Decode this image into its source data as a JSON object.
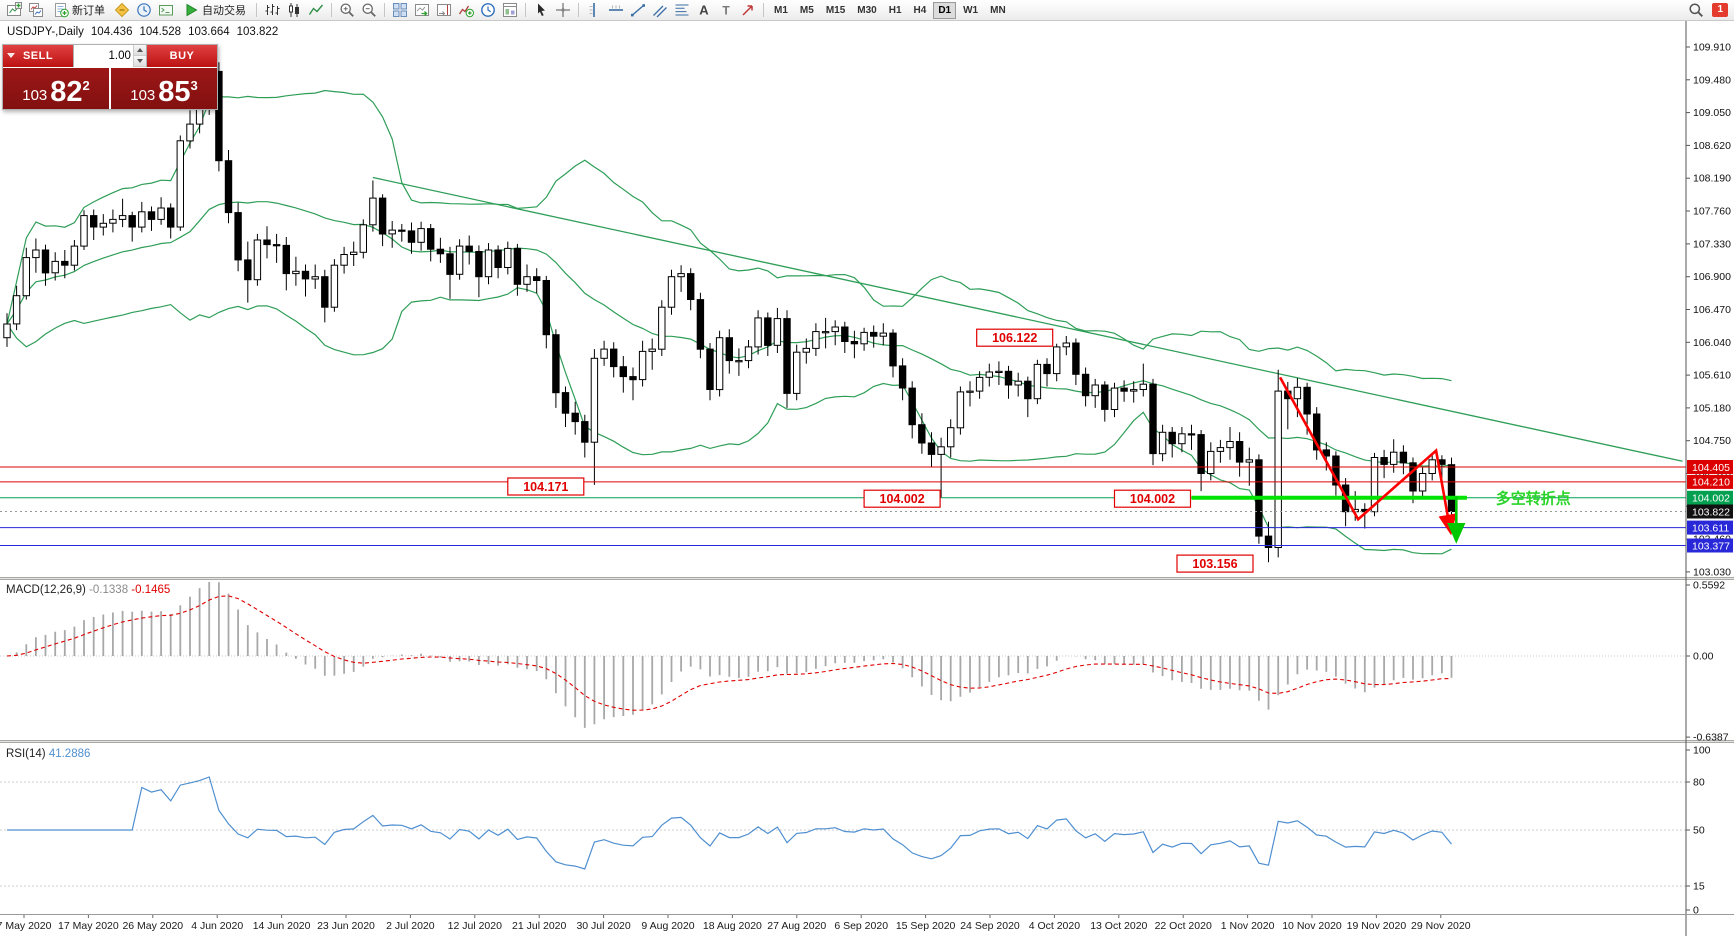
{
  "colors": {
    "bands": "#2e9e57",
    "bull": "#ffffff",
    "bear": "#000000",
    "macd_hist": "#a8a8a8",
    "macd_signal": "#e00000",
    "rsi_line": "#4f8fd0",
    "lime_arrow": "#00c800",
    "pivot_line": "#00e400",
    "pivot_text": "#2bd42b",
    "annotation_red": "#e00000",
    "level_red": "#dd0000",
    "level_green": "#00a050",
    "level_blue": "#2828d8",
    "sell_button_red": "#c01414",
    "price_panel_red": "#8e1212"
  },
  "toolbar": {
    "groups": [
      {
        "type": "icons",
        "items": [
          "new-chart",
          "chart-list"
        ]
      },
      {
        "type": "labeled-button",
        "name": "new-order",
        "icon": "new-order-doc",
        "label": "新订单"
      },
      {
        "type": "icons",
        "items": [
          "metaeditor",
          "market-watch",
          "terminal-box"
        ]
      },
      {
        "type": "labeled-button",
        "name": "autotrading",
        "icon": "autotrading-play",
        "label": "自动交易"
      },
      {
        "type": "sep"
      },
      {
        "type": "icons",
        "items": [
          "bar-chart",
          "candlestick",
          "line-chart"
        ]
      },
      {
        "type": "sep"
      },
      {
        "type": "icons",
        "items": [
          "zoom-in",
          "zoom-out"
        ]
      },
      {
        "type": "sep"
      },
      {
        "type": "icons",
        "items": [
          "tile-windows",
          "auto-scroll",
          "chart-shift",
          "indicators-add",
          "periods-clock",
          "templates"
        ]
      },
      {
        "type": "sep"
      },
      {
        "type": "icons",
        "items": [
          "cursor",
          "crosshair"
        ]
      },
      {
        "type": "sep"
      },
      {
        "type": "icons",
        "items": [
          "vertical-line",
          "horizontal-line",
          "trendline",
          "channel",
          "fibonacci",
          "text",
          "text-label",
          "arrows-tool"
        ]
      },
      {
        "type": "sep"
      },
      {
        "type": "timeframes"
      }
    ],
    "timeframes": [
      {
        "label": "M1"
      },
      {
        "label": "M5"
      },
      {
        "label": "M15"
      },
      {
        "label": "M30"
      },
      {
        "label": "H1"
      },
      {
        "label": "H4"
      },
      {
        "label": "D1",
        "active": true
      },
      {
        "label": "W1"
      },
      {
        "label": "MN"
      }
    ],
    "right": {
      "search_icon": "search",
      "badge": "1"
    }
  },
  "chart": {
    "symbol_period": "USDJPY-,Daily",
    "ohlc": {
      "o": "104.436",
      "h": "104.528",
      "l": "103.664",
      "c": "103.822"
    },
    "price_ticks": [
      "109.910",
      "109.480",
      "109.050",
      "108.620",
      "108.190",
      "107.760",
      "107.330",
      "106.900",
      "106.470",
      "106.040",
      "105.610",
      "105.180",
      "104.750",
      "104.320",
      "103.890",
      "103.460",
      "103.030"
    ],
    "date_labels": [
      "7 May 2020",
      "17 May 2020",
      "26 May 2020",
      "4 Jun 2020",
      "14 Jun 2020",
      "23 Jun 2020",
      "2 Jul 2020",
      "12 Jul 2020",
      "21 Jul 2020",
      "30 Jul 2020",
      "9 Aug 2020",
      "18 Aug 2020",
      "27 Aug 2020",
      "6 Sep 2020",
      "15 Sep 2020",
      "24 Sep 2020",
      "4 Oct 2020",
      "13 Oct 2020",
      "22 Oct 2020",
      "1 Nov 2020",
      "10 Nov 2020",
      "19 Nov 2020",
      "29 Nov 2020"
    ],
    "horizontal_levels": [
      {
        "value": "104.405",
        "color": "#dd0000"
      },
      {
        "value": "104.210",
        "color": "#dd0000"
      },
      {
        "value": "104.002",
        "color": "#00a050"
      },
      {
        "value": "103.611",
        "color": "#2828d8"
      },
      {
        "value": "103.377",
        "color": "#2828d8"
      }
    ],
    "current_price_badge": {
      "value": "103.822",
      "bg": "#111111"
    },
    "price_annotations": [
      {
        "text": "106.122",
        "index": 100.7,
        "price": 106.1
      },
      {
        "text": "104.171",
        "index": 52,
        "price": 104.15
      },
      {
        "text": "104.002",
        "index": 89,
        "price": 103.99
      },
      {
        "text": "104.002",
        "index": 115,
        "price": 103.99
      },
      {
        "text": "103.156",
        "index": 121.5,
        "price": 103.14
      }
    ],
    "pivot_label": "多空转折点"
  },
  "one_click": {
    "sell_label": "SELL",
    "buy_label": "BUY",
    "volume": "1.00",
    "sell_price": {
      "big_figure": "103",
      "pips": "82",
      "point": "2"
    },
    "buy_price": {
      "big_figure": "103",
      "pips": "85",
      "point": "3"
    }
  },
  "macd": {
    "name": "MACD(12,26,9)",
    "value_main": "-0.1338",
    "value_signal": "-0.1465",
    "scale": [
      "0.5592",
      "0.00",
      "-0.6387"
    ]
  },
  "rsi": {
    "name": "RSI(14)",
    "value": "41.2886",
    "scale": [
      "100",
      "80",
      "50",
      "15",
      "0"
    ],
    "levels": [
      80,
      50,
      15
    ]
  },
  "chart_data": {
    "type": "candlestick",
    "symbol": "USDJPY-",
    "timeframe": "Daily",
    "ohlc_current": [
      104.436,
      104.528,
      103.664,
      103.822
    ],
    "price_axis": {
      "min": 103.03,
      "max": 109.91,
      "tick_step": 0.43
    },
    "x_axis_labels": [
      "7 May 2020",
      "17 May 2020",
      "26 May 2020",
      "4 Jun 2020",
      "14 Jun 2020",
      "23 Jun 2020",
      "2 Jul 2020",
      "12 Jul 2020",
      "21 Jul 2020",
      "30 Jul 2020",
      "9 Aug 2020",
      "18 Aug 2020",
      "27 Aug 2020",
      "6 Sep 2020",
      "15 Sep 2020",
      "24 Sep 2020",
      "4 Oct 2020",
      "13 Oct 2020",
      "22 Oct 2020",
      "1 Nov 2020",
      "10 Nov 2020",
      "19 Nov 2020",
      "29 Nov 2020"
    ],
    "candles_ohlc": [
      [
        106.1,
        106.42,
        105.98,
        106.28
      ],
      [
        106.28,
        106.78,
        106.2,
        106.65
      ],
      [
        106.65,
        107.28,
        106.6,
        107.15
      ],
      [
        107.15,
        107.4,
        106.95,
        107.25
      ],
      [
        107.25,
        107.32,
        106.78,
        106.95
      ],
      [
        106.95,
        107.22,
        106.85,
        107.1
      ],
      [
        107.1,
        107.25,
        106.88,
        107.05
      ],
      [
        107.05,
        107.38,
        106.98,
        107.3
      ],
      [
        107.3,
        107.77,
        107.25,
        107.7
      ],
      [
        107.7,
        107.78,
        107.38,
        107.55
      ],
      [
        107.55,
        107.72,
        107.44,
        107.6
      ],
      [
        107.6,
        107.78,
        107.48,
        107.65
      ],
      [
        107.65,
        107.92,
        107.55,
        107.7
      ],
      [
        107.7,
        107.75,
        107.36,
        107.55
      ],
      [
        107.55,
        107.88,
        107.48,
        107.75
      ],
      [
        107.75,
        107.82,
        107.5,
        107.65
      ],
      [
        107.65,
        107.94,
        107.58,
        107.8
      ],
      [
        107.8,
        107.86,
        107.4,
        107.55
      ],
      [
        107.55,
        108.75,
        107.5,
        108.68
      ],
      [
        108.68,
        109.08,
        108.58,
        108.9
      ],
      [
        108.9,
        109.28,
        108.78,
        109.15
      ],
      [
        109.15,
        109.85,
        109.02,
        109.59
      ],
      [
        109.59,
        109.71,
        108.28,
        108.42
      ],
      [
        108.42,
        108.56,
        107.6,
        107.74
      ],
      [
        107.74,
        107.87,
        106.97,
        107.12
      ],
      [
        107.12,
        107.36,
        106.56,
        106.86
      ],
      [
        106.86,
        107.46,
        106.78,
        107.38
      ],
      [
        107.38,
        107.56,
        107.14,
        107.32
      ],
      [
        107.32,
        107.46,
        107.08,
        107.31
      ],
      [
        107.31,
        107.42,
        106.72,
        106.94
      ],
      [
        106.94,
        107.16,
        106.78,
        106.97
      ],
      [
        106.97,
        107.06,
        106.64,
        106.87
      ],
      [
        106.87,
        107.06,
        106.74,
        106.9
      ],
      [
        106.9,
        106.99,
        106.3,
        106.5
      ],
      [
        106.5,
        107.13,
        106.44,
        107.05
      ],
      [
        107.05,
        107.29,
        106.94,
        107.19
      ],
      [
        107.19,
        107.36,
        107.04,
        107.22
      ],
      [
        107.22,
        107.65,
        107.14,
        107.58
      ],
      [
        107.58,
        108.16,
        107.49,
        107.93
      ],
      [
        107.93,
        107.98,
        107.3,
        107.46
      ],
      [
        107.46,
        107.63,
        107.28,
        107.51
      ],
      [
        107.51,
        107.59,
        107.36,
        107.5
      ],
      [
        107.5,
        107.61,
        107.2,
        107.35
      ],
      [
        107.35,
        107.62,
        107.24,
        107.53
      ],
      [
        107.53,
        107.59,
        107.1,
        107.26
      ],
      [
        107.26,
        107.41,
        107.08,
        107.2
      ],
      [
        107.2,
        107.29,
        106.61,
        106.93
      ],
      [
        106.93,
        107.39,
        106.86,
        107.3
      ],
      [
        107.3,
        107.44,
        107.06,
        107.23
      ],
      [
        107.23,
        107.31,
        106.63,
        106.9
      ],
      [
        106.9,
        107.34,
        106.8,
        107.25
      ],
      [
        107.25,
        107.31,
        106.88,
        107.02
      ],
      [
        107.02,
        107.36,
        106.93,
        107.27
      ],
      [
        107.27,
        107.33,
        106.65,
        106.8
      ],
      [
        106.8,
        107.06,
        106.7,
        106.9
      ],
      [
        106.9,
        107.01,
        106.68,
        106.85
      ],
      [
        106.85,
        106.91,
        105.96,
        106.14
      ],
      [
        106.14,
        106.21,
        105.18,
        105.38
      ],
      [
        105.38,
        105.46,
        104.93,
        105.11
      ],
      [
        105.11,
        105.26,
        104.83,
        105.0
      ],
      [
        105.0,
        105.09,
        104.53,
        104.73
      ],
      [
        104.73,
        105.95,
        104.171,
        105.83
      ],
      [
        105.83,
        106.06,
        105.73,
        105.95
      ],
      [
        105.95,
        106.04,
        105.58,
        105.72
      ],
      [
        105.72,
        105.86,
        105.38,
        105.59
      ],
      [
        105.59,
        105.71,
        105.28,
        105.55
      ],
      [
        105.55,
        106.06,
        105.46,
        105.92
      ],
      [
        105.92,
        106.09,
        105.68,
        105.95
      ],
      [
        105.95,
        106.59,
        105.86,
        106.5
      ],
      [
        106.5,
        106.99,
        106.4,
        106.9
      ],
      [
        106.9,
        107.05,
        106.7,
        106.94
      ],
      [
        106.94,
        107.01,
        106.46,
        106.6
      ],
      [
        106.6,
        106.69,
        105.83,
        105.95
      ],
      [
        105.95,
        106.03,
        105.28,
        105.42
      ],
      [
        105.42,
        106.19,
        105.33,
        106.1
      ],
      [
        106.1,
        106.21,
        105.63,
        105.8
      ],
      [
        105.8,
        105.96,
        105.6,
        105.8
      ],
      [
        105.8,
        106.07,
        105.7,
        105.98
      ],
      [
        105.98,
        106.46,
        105.88,
        106.36
      ],
      [
        106.36,
        106.43,
        105.86,
        106.0
      ],
      [
        106.0,
        106.49,
        105.9,
        106.35
      ],
      [
        106.35,
        106.46,
        105.18,
        105.37
      ],
      [
        105.37,
        106.01,
        105.28,
        105.91
      ],
      [
        105.91,
        106.09,
        105.76,
        105.96
      ],
      [
        105.96,
        106.29,
        105.86,
        106.18
      ],
      [
        106.18,
        106.36,
        105.96,
        106.18
      ],
      [
        106.18,
        106.33,
        106.0,
        106.24
      ],
      [
        106.24,
        106.31,
        105.9,
        106.05
      ],
      [
        106.05,
        106.19,
        105.83,
        106.02
      ],
      [
        106.02,
        106.23,
        105.93,
        106.17
      ],
      [
        106.17,
        106.26,
        105.97,
        106.12
      ],
      [
        106.12,
        106.29,
        106.0,
        106.16
      ],
      [
        106.16,
        106.21,
        105.58,
        105.73
      ],
      [
        105.73,
        105.83,
        105.28,
        105.44
      ],
      [
        105.44,
        105.53,
        104.78,
        104.96
      ],
      [
        104.96,
        105.11,
        104.58,
        104.72
      ],
      [
        104.72,
        104.86,
        104.4,
        104.57
      ],
      [
        104.57,
        104.79,
        104.002,
        104.67
      ],
      [
        104.67,
        105.03,
        104.53,
        104.92
      ],
      [
        104.92,
        105.46,
        104.83,
        105.39
      ],
      [
        105.39,
        105.53,
        105.2,
        105.4
      ],
      [
        105.4,
        105.66,
        105.3,
        105.58
      ],
      [
        105.58,
        105.76,
        105.46,
        105.65
      ],
      [
        105.65,
        105.79,
        105.48,
        105.66
      ],
      [
        105.66,
        105.73,
        105.3,
        105.48
      ],
      [
        105.48,
        105.64,
        105.33,
        105.53
      ],
      [
        105.53,
        105.59,
        105.06,
        105.3
      ],
      [
        105.3,
        105.81,
        105.23,
        105.75
      ],
      [
        105.75,
        105.83,
        105.46,
        105.63
      ],
      [
        105.63,
        106.02,
        105.53,
        105.98
      ],
      [
        105.98,
        106.122,
        105.87,
        106.03
      ],
      [
        106.03,
        106.09,
        105.48,
        105.62
      ],
      [
        105.62,
        105.71,
        105.2,
        105.34
      ],
      [
        105.34,
        105.56,
        105.18,
        105.48
      ],
      [
        105.48,
        105.53,
        105.0,
        105.16
      ],
      [
        105.16,
        105.51,
        105.06,
        105.44
      ],
      [
        105.44,
        105.54,
        105.26,
        105.4
      ],
      [
        105.4,
        105.53,
        105.25,
        105.42
      ],
      [
        105.42,
        105.76,
        105.33,
        105.49
      ],
      [
        105.49,
        105.56,
        104.43,
        104.58
      ],
      [
        104.58,
        104.96,
        104.48,
        104.86
      ],
      [
        104.86,
        104.93,
        104.53,
        104.71
      ],
      [
        104.71,
        104.93,
        104.6,
        104.84
      ],
      [
        104.84,
        104.96,
        104.63,
        104.83
      ],
      [
        104.83,
        104.89,
        104.09,
        104.32
      ],
      [
        104.32,
        104.73,
        104.23,
        104.61
      ],
      [
        104.61,
        104.76,
        104.46,
        104.66
      ],
      [
        104.66,
        104.93,
        104.5,
        104.74
      ],
      [
        104.74,
        104.86,
        104.28,
        104.47
      ],
      [
        104.47,
        104.66,
        104.16,
        104.5
      ],
      [
        104.5,
        104.57,
        103.4,
        103.5
      ],
      [
        103.5,
        103.69,
        103.156,
        103.35
      ],
      [
        103.35,
        105.68,
        103.22,
        105.4
      ],
      [
        105.4,
        105.52,
        104.9,
        105.3
      ],
      [
        105.3,
        105.57,
        105.06,
        105.45
      ],
      [
        105.45,
        105.51,
        104.83,
        105.1
      ],
      [
        105.1,
        105.19,
        104.5,
        104.63
      ],
      [
        104.63,
        104.73,
        104.36,
        104.55
      ],
      [
        104.55,
        104.61,
        104.03,
        104.17
      ],
      [
        104.17,
        104.26,
        103.63,
        103.82
      ],
      [
        103.82,
        104.09,
        103.7,
        103.85
      ],
      [
        103.85,
        103.93,
        103.6,
        103.82
      ],
      [
        103.82,
        104.59,
        103.76,
        104.53
      ],
      [
        104.53,
        104.63,
        104.26,
        104.44
      ],
      [
        104.44,
        104.77,
        104.33,
        104.6
      ],
      [
        104.6,
        104.69,
        104.31,
        104.46
      ],
      [
        104.46,
        104.53,
        103.93,
        104.09
      ],
      [
        104.09,
        104.41,
        104.0,
        104.32
      ],
      [
        104.32,
        104.59,
        104.23,
        104.5
      ],
      [
        104.5,
        104.56,
        104.26,
        104.44
      ],
      [
        104.436,
        104.528,
        103.664,
        103.822
      ]
    ],
    "overlays": {
      "bollinger_bands": {
        "period": 20,
        "deviation": 2,
        "color": "#2e9e57"
      },
      "trendline": {
        "from_index": 38,
        "from_price": 108.2,
        "to_index": 174,
        "to_price": 104.48,
        "color": "#2e9e57"
      },
      "pivot_segment": {
        "price": 104.002,
        "from_index": 123,
        "to_index": 151.6,
        "color": "#00e400",
        "label": "多空转折点"
      },
      "zigzag_arrows": {
        "color": "#ff0000",
        "points": [
          [
            132.2,
            105.58
          ],
          [
            140.3,
            103.72
          ],
          [
            148.4,
            104.62
          ],
          [
            149.9,
            103.56
          ]
        ]
      },
      "down_arrow": {
        "color": "#00c800",
        "from": [
          150.5,
          104.02
        ],
        "to": [
          150.5,
          103.45
        ]
      }
    },
    "sub_indicators": [
      {
        "type": "macd_histogram",
        "label": "MACD(12,26,9)",
        "values_text": [
          "-0.1338",
          "-0.1465"
        ],
        "scale": [
          "0.5592",
          "0.00",
          "-0.6387"
        ]
      },
      {
        "type": "rsi_line",
        "label": "RSI(14)",
        "value_text": "41.2886",
        "scale": [
          "100",
          "80",
          "50",
          "15",
          "0"
        ]
      }
    ]
  }
}
